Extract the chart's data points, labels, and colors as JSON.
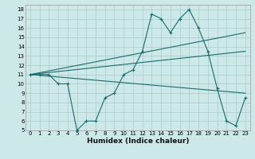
{
  "xlabel": "Humidex (Indice chaleur)",
  "ylabel": "",
  "background_color": "#cce8e8",
  "grid_color": "#aacccc",
  "line_color": "#1a6b6b",
  "xlim": [
    -0.5,
    23.5
  ],
  "ylim": [
    5,
    18.5
  ],
  "xticks": [
    0,
    1,
    2,
    3,
    4,
    5,
    6,
    7,
    8,
    9,
    10,
    11,
    12,
    13,
    14,
    15,
    16,
    17,
    18,
    19,
    20,
    21,
    22,
    23
  ],
  "yticks": [
    5,
    6,
    7,
    8,
    9,
    10,
    11,
    12,
    13,
    14,
    15,
    16,
    17,
    18
  ],
  "series": [
    {
      "x": [
        0,
        1,
        2,
        3,
        4,
        5,
        6,
        7,
        8,
        9,
        10,
        11,
        12,
        13,
        14,
        15,
        16,
        17,
        18,
        19,
        20,
        21,
        22,
        23
      ],
      "y": [
        11,
        11,
        11,
        10,
        10,
        5,
        6,
        6,
        8.5,
        9,
        11,
        11.5,
        13.5,
        17.5,
        17,
        15.5,
        17,
        18,
        16,
        13.5,
        9.5,
        6,
        5.5,
        8.5
      ],
      "marker": true
    },
    {
      "x": [
        0,
        23
      ],
      "y": [
        11,
        15.5
      ],
      "marker": false
    },
    {
      "x": [
        0,
        23
      ],
      "y": [
        11,
        13.5
      ],
      "marker": false
    },
    {
      "x": [
        0,
        23
      ],
      "y": [
        11,
        9
      ],
      "marker": false
    }
  ],
  "xlabel_fontsize": 6.5,
  "xlabel_fontweight": "bold",
  "tick_fontsize": 5.0
}
